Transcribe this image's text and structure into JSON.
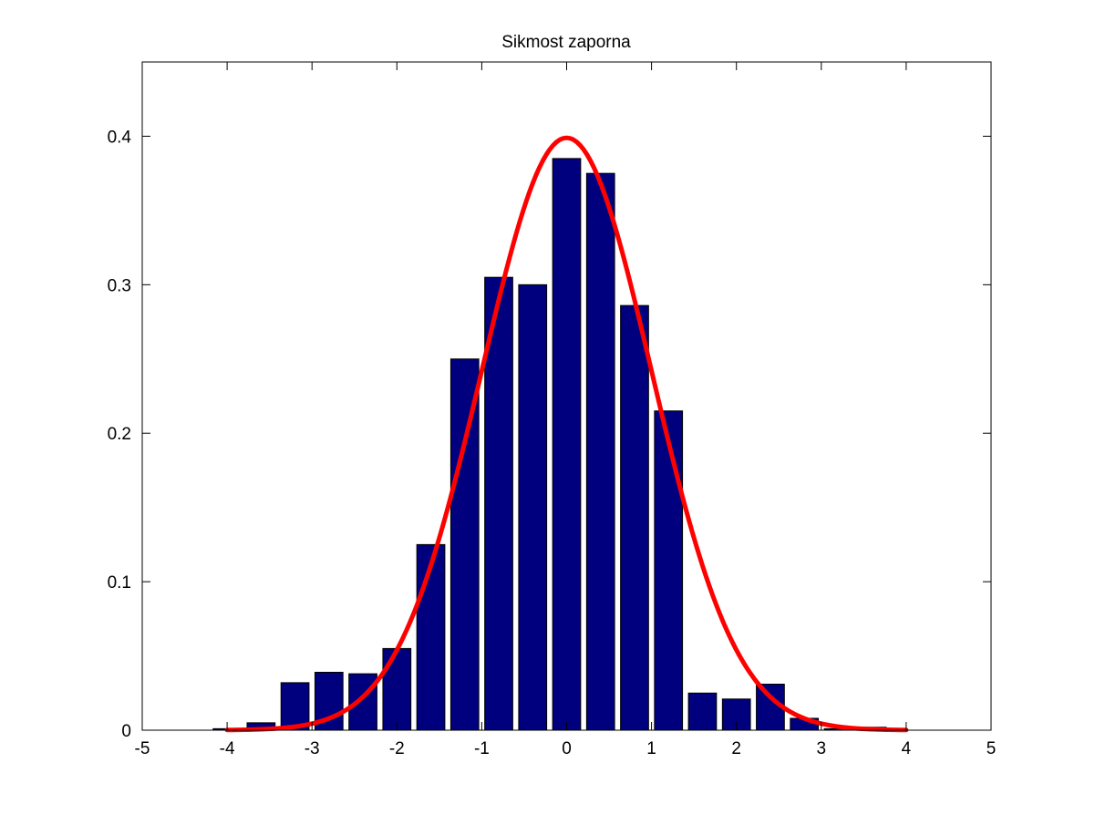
{
  "chart_data": {
    "type": "bar",
    "title": "Sikmost zaporna",
    "xlabel": "",
    "ylabel": "",
    "xlim": [
      -5,
      5
    ],
    "ylim": [
      0,
      0.45
    ],
    "xticks": [
      "-5",
      "-4",
      "-3",
      "-2",
      "-1",
      "0",
      "1",
      "2",
      "3",
      "4",
      "5"
    ],
    "yticks": [
      "0",
      "0.1",
      "0.2",
      "0.3",
      "0.4"
    ],
    "bar_width": 0.33,
    "bars": {
      "x": [
        -4.0,
        -3.6,
        -3.2,
        -2.8,
        -2.4,
        -2.0,
        -1.6,
        -1.2,
        -0.8,
        -0.4,
        0.0,
        0.4,
        0.8,
        1.2,
        1.6,
        2.0,
        2.4,
        2.8,
        3.2,
        3.6
      ],
      "values": [
        0.001,
        0.005,
        0.032,
        0.039,
        0.038,
        0.055,
        0.125,
        0.25,
        0.305,
        0.3,
        0.385,
        0.375,
        0.286,
        0.215,
        0.025,
        0.021,
        0.031,
        0.008,
        0.001,
        0.002
      ]
    },
    "curve": {
      "type": "line",
      "description_type": "normal pdf",
      "mean": 0,
      "sd": 1,
      "x_range": [
        -4,
        4
      ]
    },
    "grid": false,
    "legend": "none"
  },
  "colors": {
    "bar_fill": "#00007f",
    "bar_edge": "#000000",
    "curve": "#ff0000",
    "axes": "#000000",
    "background": "#ffffff"
  }
}
